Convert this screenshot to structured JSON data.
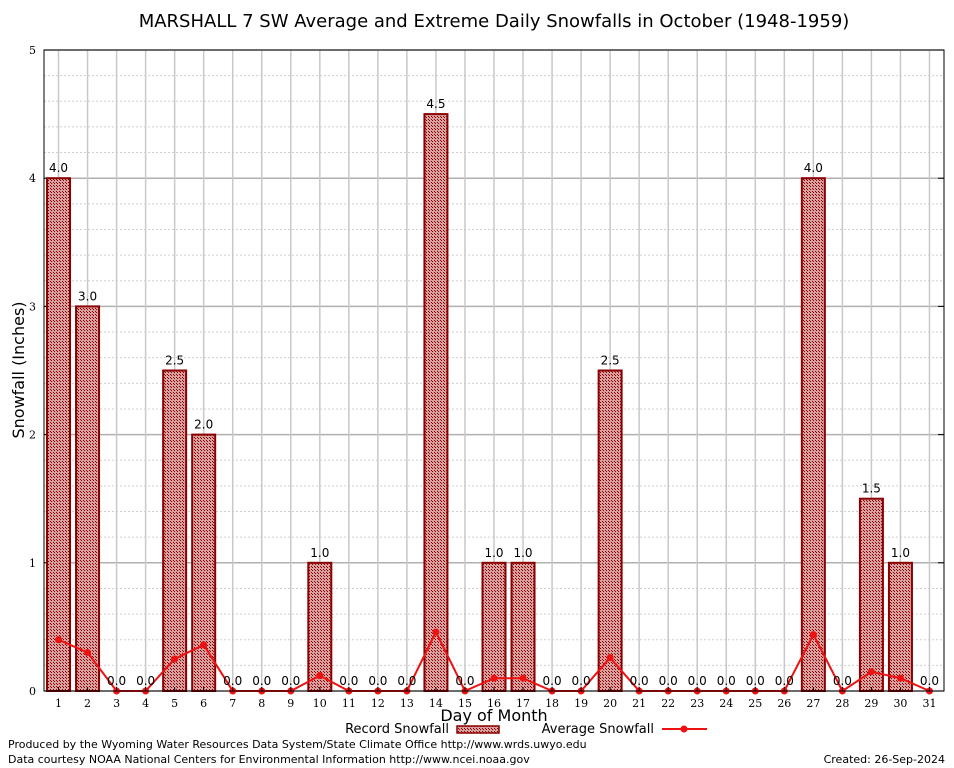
{
  "chart_data": {
    "type": "bar",
    "title": "MARSHALL 7 SW Average and Extreme Daily Snowfalls in October (1948-1959)",
    "xlabel": "Day of Month",
    "ylabel": "Snowfall (Inches)",
    "ylim": [
      0,
      5
    ],
    "yticks": [
      "0",
      "1",
      "2",
      "3",
      "4",
      "5"
    ],
    "categories": [
      "1",
      "2",
      "3",
      "4",
      "5",
      "6",
      "7",
      "8",
      "9",
      "10",
      "11",
      "12",
      "13",
      "14",
      "15",
      "16",
      "17",
      "18",
      "19",
      "20",
      "21",
      "22",
      "23",
      "24",
      "25",
      "26",
      "27",
      "28",
      "29",
      "30",
      "31"
    ],
    "series": [
      {
        "name": "Record Snowfall",
        "kind": "bar",
        "color": "#8b0000",
        "values": [
          4.0,
          3.0,
          0.0,
          0.0,
          2.5,
          2.0,
          0.0,
          0.0,
          0.0,
          1.0,
          0.0,
          0.0,
          0.0,
          4.5,
          0.0,
          1.0,
          1.0,
          0.0,
          0.0,
          2.5,
          0.0,
          0.0,
          0.0,
          0.0,
          0.0,
          0.0,
          4.0,
          0.0,
          1.5,
          1.0,
          0.0
        ],
        "labels": [
          "4.0",
          "3.0",
          "0.0",
          "0.0",
          "2.5",
          "2.0",
          "0.0",
          "0.0",
          "0.0",
          "1.0",
          "0.0",
          "0.0",
          "0.0",
          "4.5",
          "0.0",
          "1.0",
          "1.0",
          "0.0",
          "0.0",
          "2.5",
          "0.0",
          "0.0",
          "0.0",
          "0.0",
          "0.0",
          "0.0",
          "4.0",
          "0.0",
          "1.5",
          "1.0",
          "0.0"
        ]
      },
      {
        "name": "Average Snowfall",
        "kind": "line",
        "color": "#ee1111",
        "values": [
          0.4,
          0.3,
          0.0,
          0.0,
          0.25,
          0.36,
          0.0,
          0.0,
          0.0,
          0.12,
          0.0,
          0.0,
          0.0,
          0.46,
          0.0,
          0.1,
          0.1,
          0.0,
          0.0,
          0.26,
          0.0,
          0.0,
          0.0,
          0.0,
          0.0,
          0.0,
          0.44,
          0.0,
          0.15,
          0.1,
          0.0
        ]
      }
    ],
    "grid": true,
    "legend": "bottom-center"
  },
  "footer": {
    "produced_by": "Produced by the Wyoming Water Resources Data System/State Climate Office http://www.wrds.uwyo.edu",
    "courtesy": "Data courtesy NOAA National Centers for Environmental Information http://www.ncei.noaa.gov",
    "created": "Created: 26-Sep-2024"
  }
}
